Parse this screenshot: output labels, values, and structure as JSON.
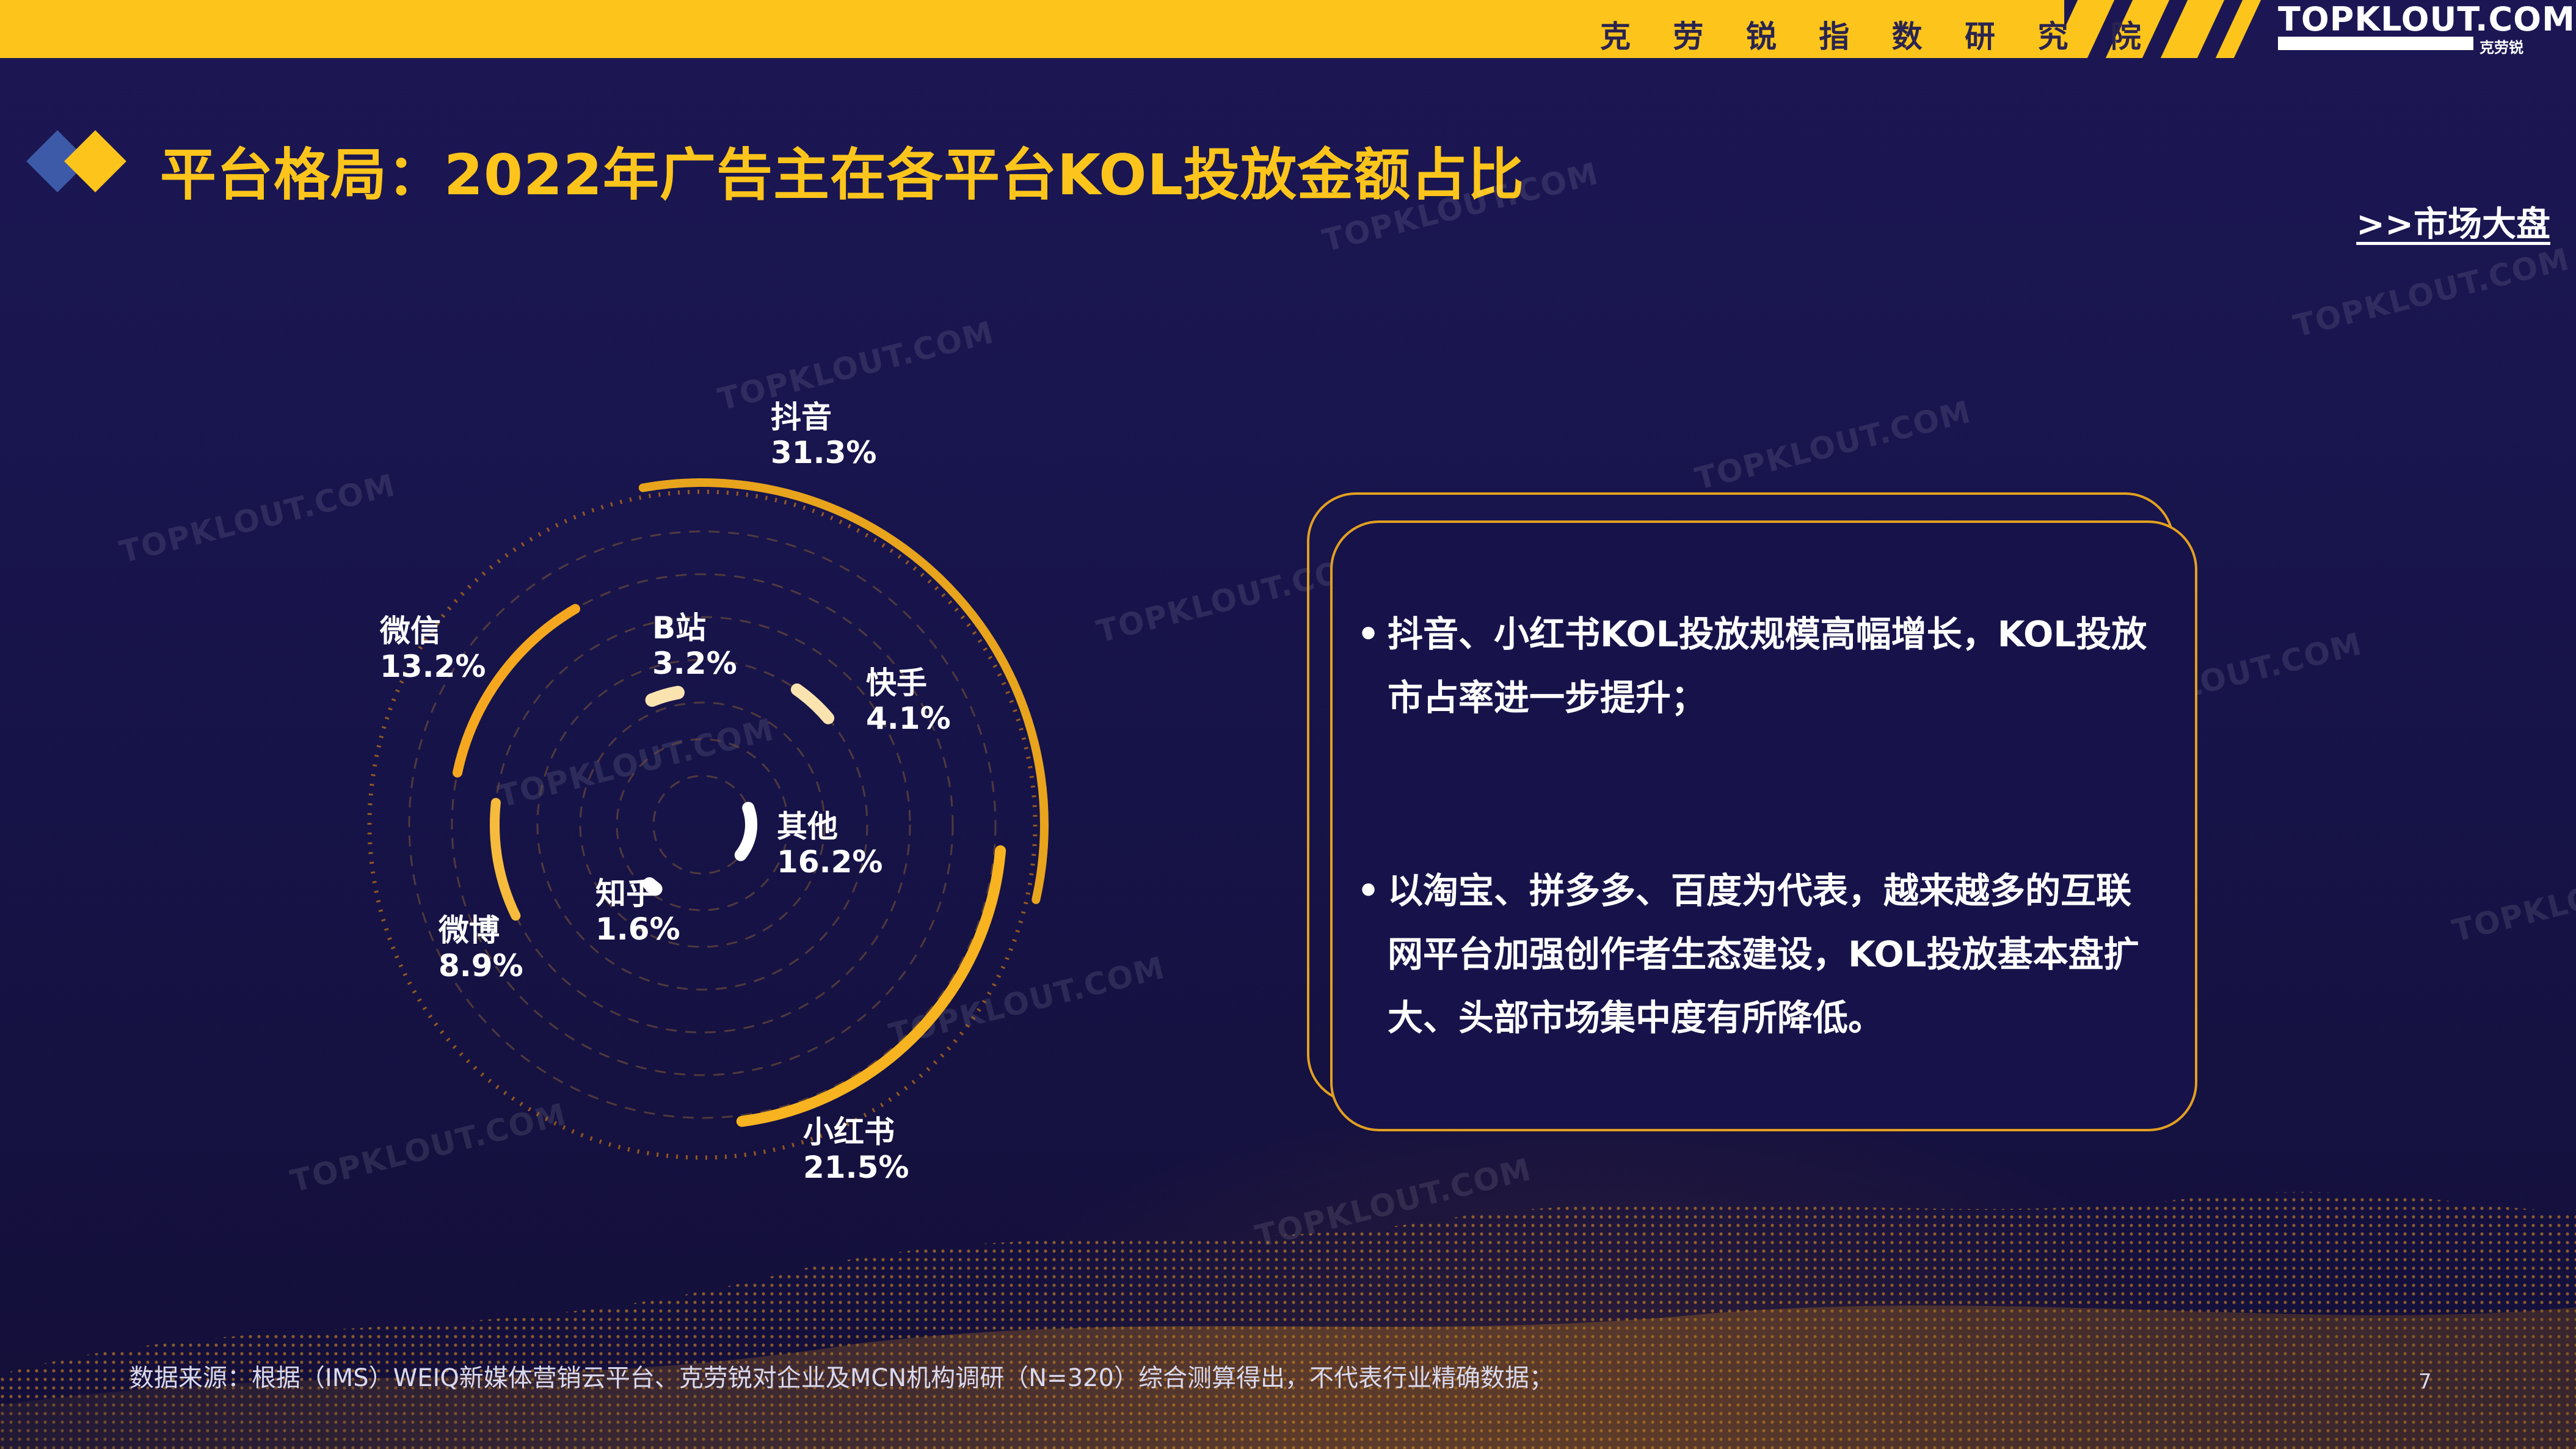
{
  "header": {
    "institute": "克 劳 锐 指 数 研 究 院",
    "logo_text": "TOPKLOUT.COM",
    "logo_cn": "克劳锐"
  },
  "page_title": "平台格局：2022年广告主在各平台KOL投放金额占比",
  "nav_link": ">>市场大盘",
  "chart_data": {
    "type": "radial-bar",
    "unit": "%",
    "categories": [
      "抖音",
      "小红书",
      "微信",
      "微博",
      "B站",
      "快手",
      "其他",
      "知乎"
    ],
    "values": [
      31.3,
      21.5,
      13.2,
      8.9,
      3.2,
      4.1,
      16.2,
      1.6
    ],
    "labels": [
      {
        "name": "抖音",
        "value": "31.3%"
      },
      {
        "name": "小红书",
        "value": "21.5%"
      },
      {
        "name": "微信",
        "value": "13.2%"
      },
      {
        "name": "微博",
        "value": "8.9%"
      },
      {
        "name": "B站",
        "value": "3.2%"
      },
      {
        "name": "快手",
        "value": "4.1%"
      },
      {
        "name": "其他",
        "value": "16.2%"
      },
      {
        "name": "知乎",
        "value": "1.6%"
      }
    ],
    "colors": [
      "#e8a41c",
      "#f7b320",
      "#f5a81f",
      "#f6bb3c",
      "#fbe3b0",
      "#fbe3b0",
      "#ffffff",
      "#ffffff"
    ]
  },
  "info_box": {
    "bullets": [
      {
        "dot": "•",
        "text": "抖音、小红书KOL投放规模高幅增长，KOL投放市占率进一步提升；"
      },
      {
        "dot": "•",
        "text": "以淘宝、拼多多、百度为代表，越来越多的互联网平台加强创作者生态建设，KOL投放基本盘扩大、头部市场集中度有所降低。"
      }
    ]
  },
  "footer": {
    "source": "数据来源：根据（IMS）WEIQ新媒体营销云平台、克劳锐对企业及MCN机构调研（N=320）综合测算得出，不代表行业精确数据；",
    "page_number": "7"
  },
  "watermark_text": "TOPKLOUT.COM",
  "colors": {
    "accent": "#fdc51b",
    "background": "#17144a",
    "box_border": "#e3a020"
  }
}
